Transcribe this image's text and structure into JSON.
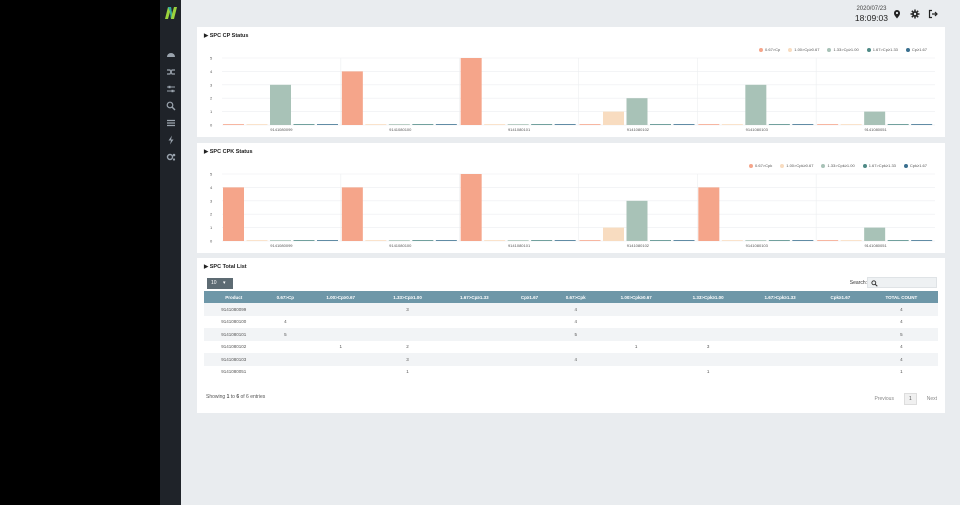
{
  "topbar": {
    "date": "2020/07/23",
    "time": "18:09:03"
  },
  "sidebar": {
    "icons": [
      "dashboard-icon",
      "shuffle-icon",
      "sliders-icon",
      "search-icon",
      "list-icon",
      "bolt-icon",
      "gears-icon"
    ]
  },
  "legend_labels": [
    "0.67>Cp",
    "1.00>Cp≥0.67",
    "1.33>Cp≥1.00",
    "1.67>Cp≥1.33",
    "Cp≥1.67"
  ],
  "legend_labels_cpk": [
    "0.67>Cpk",
    "1.00>Cpk≥0.67",
    "1.33>Cpk≥1.00",
    "1.67>Cpk≥1.33",
    "Cpk≥1.67"
  ],
  "colors": {
    "c1": "#f5a58a",
    "c2": "#f8dcc0",
    "c3": "#a8c2b7",
    "c4": "#4f8a86",
    "c5": "#3a6f8f"
  },
  "chart_data": [
    {
      "type": "bar",
      "title": "SPC CP Status",
      "categories": [
        "9141080099",
        "9141080100",
        "9141080101",
        "9141080102",
        "9141080103",
        "9141080051"
      ],
      "ylim": [
        0,
        5
      ],
      "yticks": [
        "0",
        "1",
        "2",
        "3",
        "4",
        "5"
      ],
      "series": [
        {
          "name": "0.67>Cp",
          "values": [
            0,
            4,
            5,
            0,
            0,
            0
          ]
        },
        {
          "name": "1.00>Cp≥0.67",
          "values": [
            0,
            0,
            0,
            1,
            0,
            0
          ]
        },
        {
          "name": "1.33>Cp≥1.00",
          "values": [
            3,
            0,
            0,
            2,
            3,
            1
          ]
        },
        {
          "name": "1.67>Cp≥1.33",
          "values": [
            0,
            0,
            0,
            0,
            0,
            0
          ]
        },
        {
          "name": "Cp≥1.67",
          "values": [
            0,
            0,
            0,
            0,
            0,
            0
          ]
        }
      ]
    },
    {
      "type": "bar",
      "title": "SPC CPK Status",
      "categories": [
        "9141080099",
        "9141080100",
        "9141080101",
        "9141080102",
        "9141080103",
        "9141080051"
      ],
      "ylim": [
        0,
        5
      ],
      "yticks": [
        "0",
        "1",
        "2",
        "3",
        "4",
        "5"
      ],
      "series": [
        {
          "name": "0.67>Cpk",
          "values": [
            4,
            4,
            5,
            0,
            4,
            0
          ]
        },
        {
          "name": "1.00>Cpk≥0.67",
          "values": [
            0,
            0,
            0,
            1,
            0,
            0
          ]
        },
        {
          "name": "1.33>Cpk≥1.00",
          "values": [
            0,
            0,
            0,
            3,
            0,
            1
          ]
        },
        {
          "name": "1.67>Cpk≥1.33",
          "values": [
            0,
            0,
            0,
            0,
            0,
            0
          ]
        },
        {
          "name": "Cpk≥1.67",
          "values": [
            0,
            0,
            0,
            0,
            0,
            0
          ]
        }
      ]
    }
  ],
  "table": {
    "title": "SPC Total List",
    "length_value": "10",
    "search_label": "Search:",
    "search_placeholder": "",
    "headers": [
      "Product",
      "0.67>Cp",
      "1.00>Cp≥0.67",
      "1.33>Cp≥1.00",
      "1.67>Cp≥1.33",
      "Cp≥1.67",
      "0.67>Cpk",
      "1.00>Cpk≥0.67",
      "1.33>Cpk≥1.00",
      "1.67>Cpk≥1.33",
      "Cpk≥1.67",
      "TOTAL COUNT"
    ],
    "rows": [
      [
        "9141080099",
        "",
        "",
        "3",
        "",
        "",
        "4",
        "",
        "",
        "",
        "",
        "4"
      ],
      [
        "9141080100",
        "4",
        "",
        "",
        "",
        "",
        "4",
        "",
        "",
        "",
        "",
        "4"
      ],
      [
        "9141080101",
        "5",
        "",
        "",
        "",
        "",
        "5",
        "",
        "",
        "",
        "",
        "5"
      ],
      [
        "9141080102",
        "",
        "1",
        "2",
        "",
        "",
        "",
        "1",
        "3",
        "",
        "",
        "4"
      ],
      [
        "9141080103",
        "",
        "",
        "3",
        "",
        "",
        "4",
        "",
        "",
        "",
        "",
        "4"
      ],
      [
        "9141080051",
        "",
        "",
        "1",
        "",
        "",
        "",
        "",
        "1",
        "",
        "",
        "1"
      ]
    ],
    "info_prefix": "Showing ",
    "info_from": "1",
    "info_to_word": " to ",
    "info_to": "6",
    "info_suffix": " of 6 entries",
    "pager": {
      "previous": "Previous",
      "current": "1",
      "next": "Next"
    }
  }
}
